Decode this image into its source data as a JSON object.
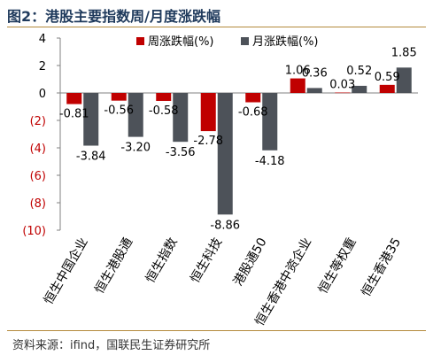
{
  "title": "图2：港股主要指数周/月度涨跌幅",
  "source": "资料来源：ifind，国联民生证券研究所",
  "chart_data": {
    "type": "bar",
    "categories": [
      "恒生中国企业",
      "恒生港股通",
      "恒生指数",
      "恒生科技",
      "港股通50",
      "恒生香港中资企业",
      "恒生等权重",
      "恒生香港35"
    ],
    "series": [
      {
        "name": "周涨跌幅(%)",
        "values": [
          -0.81,
          -0.56,
          -0.58,
          -2.78,
          -0.68,
          1.06,
          0.03,
          0.59
        ],
        "labels": [
          "-0.81",
          "-0.56",
          "-0.58",
          "-2.78",
          "-0.68",
          "1.06",
          "0.03",
          "0.59"
        ],
        "color": "#c00000"
      },
      {
        "name": "月涨跌幅(%)",
        "values": [
          -3.84,
          -3.2,
          -3.56,
          -8.86,
          -4.18,
          0.36,
          0.52,
          1.85
        ],
        "labels": [
          "-3.84",
          "-3.20",
          "-3.56",
          "-8.86",
          "-4.18",
          "0.36",
          "0.52",
          "1.85"
        ],
        "color": "#4d5259"
      }
    ],
    "yticks": [
      4,
      2,
      0,
      -2,
      -4,
      -6,
      -8,
      -10
    ],
    "ytick_labels": [
      "4",
      "2",
      "0",
      "(2)",
      "(4)",
      "(6)",
      "(8)",
      "(10)"
    ],
    "ylim": [
      -10,
      4
    ],
    "legend_position": "top",
    "grid": false,
    "xlabel": "",
    "ylabel": ""
  }
}
